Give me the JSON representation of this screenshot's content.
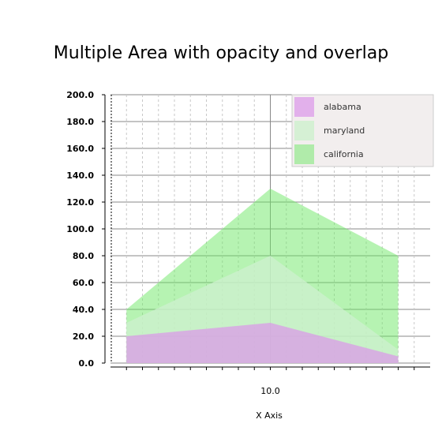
{
  "chart_data": {
    "type": "area",
    "title": "Multiple Area with opacity and overlap",
    "xlabel": "X Axis",
    "ylabel": "",
    "x_tick_labels": [
      "10.0"
    ],
    "y_tick_labels": [
      "0.0",
      "20.0",
      "40.0",
      "60.0",
      "80.0",
      "100.0",
      "120.0",
      "140.0",
      "160.0",
      "180.0",
      "200.0"
    ],
    "ylim": [
      0,
      200
    ],
    "xlim": [
      0,
      20
    ],
    "x": [
      1,
      10,
      18
    ],
    "grid": true,
    "legend_position": "top-right",
    "series": [
      {
        "name": "california",
        "values": [
          40,
          130,
          80
        ],
        "color": "#6ee866",
        "opacity": 0.5
      },
      {
        "name": "maryland",
        "values": [
          30,
          80,
          10
        ],
        "color": "#cdf0cd",
        "opacity": 0.8
      },
      {
        "name": "alabama",
        "values": [
          20,
          30,
          5
        ],
        "color": "#dc96ea",
        "opacity": 0.7
      }
    ],
    "legend": [
      "alabama",
      "maryland",
      "california"
    ]
  }
}
